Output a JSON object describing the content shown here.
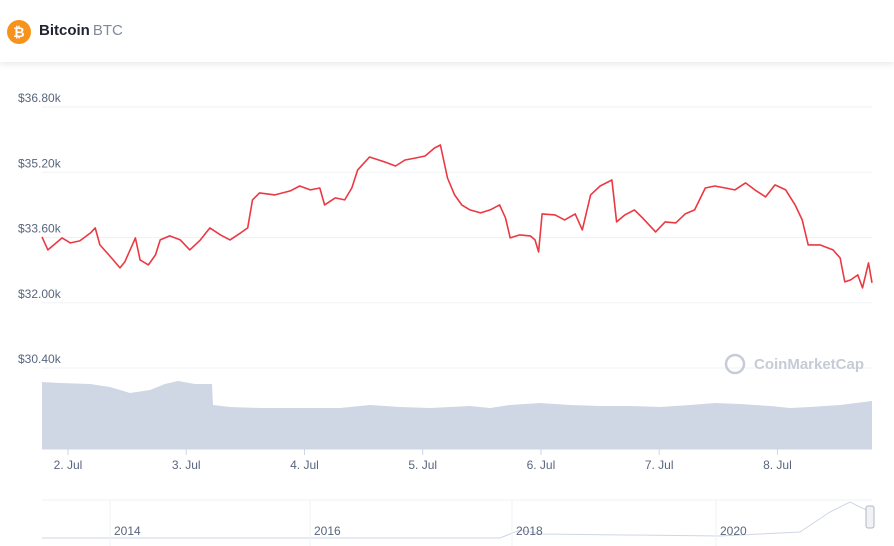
{
  "header": {
    "name": "Bitcoin",
    "symbol": "BTC"
  },
  "chart_data": {
    "type": "line",
    "color": "#ea3943",
    "grid": true,
    "x": [
      1.78,
      1.83,
      1.89,
      1.95,
      2.02,
      2.1,
      2.19,
      2.23,
      2.27,
      2.36,
      2.44,
      2.48,
      2.57,
      2.61,
      2.68,
      2.74,
      2.78,
      2.86,
      2.95,
      3.03,
      3.12,
      3.2,
      3.29,
      3.37,
      3.46,
      3.52,
      3.56,
      3.62,
      3.75,
      3.88,
      3.96,
      4.05,
      4.13,
      4.17,
      4.26,
      4.34,
      4.4,
      4.45,
      4.55,
      4.68,
      4.77,
      4.85,
      4.94,
      5.02,
      5.1,
      5.15,
      5.21,
      5.27,
      5.33,
      5.4,
      5.49,
      5.57,
      5.65,
      5.7,
      5.74,
      5.82,
      5.91,
      5.95,
      5.98,
      6.01,
      6.12,
      6.2,
      6.29,
      6.35,
      6.42,
      6.5,
      6.6,
      6.64,
      6.71,
      6.79,
      6.86,
      6.97,
      7.05,
      7.14,
      7.22,
      7.3,
      7.39,
      7.47,
      7.56,
      7.64,
      7.73,
      7.81,
      7.9,
      7.98,
      8.07,
      8.15,
      8.21,
      8.26,
      8.36,
      8.47,
      8.53,
      8.57,
      8.62,
      8.68,
      8.72,
      8.77,
      8.8
    ],
    "values": [
      33615,
      33296,
      33443,
      33590,
      33468,
      33517,
      33713,
      33835,
      33419,
      33125,
      32855,
      33002,
      33590,
      33051,
      32929,
      33174,
      33541,
      33639,
      33541,
      33296,
      33541,
      33835,
      33664,
      33541,
      33713,
      33835,
      34521,
      34693,
      34644,
      34742,
      34864,
      34766,
      34815,
      34399,
      34570,
      34521,
      34815,
      35257,
      35575,
      35452,
      35354,
      35501,
      35550,
      35599,
      35795,
      35869,
      35060,
      34644,
      34399,
      34276,
      34203,
      34276,
      34399,
      34080,
      33590,
      33664,
      33639,
      33541,
      33247,
      34178,
      34154,
      34031,
      34178,
      33786,
      34644,
      34864,
      35011,
      33982,
      34154,
      34276,
      34080,
      33737,
      33982,
      33958,
      34178,
      34276,
      34815,
      34864,
      34815,
      34766,
      34938,
      34766,
      34595,
      34889,
      34766,
      34399,
      34031,
      33419,
      33419,
      33296,
      33100,
      32512,
      32561,
      32684,
      32365,
      32978,
      32488
    ],
    "xlim": [
      1.78,
      8.8
    ],
    "xticks": [
      {
        "value": 2,
        "label": "2. Jul"
      },
      {
        "value": 3,
        "label": "3. Jul"
      },
      {
        "value": 4,
        "label": "4. Jul"
      },
      {
        "value": 5,
        "label": "5. Jul"
      },
      {
        "value": 6,
        "label": "6. Jul"
      },
      {
        "value": 7,
        "label": "7. Jul"
      },
      {
        "value": 8,
        "label": "8. Jul"
      }
    ],
    "ylim": [
      30400,
      36800
    ],
    "yticks": [
      {
        "value": 36800,
        "label": "$36.80k"
      },
      {
        "value": 35200,
        "label": "$35.20k"
      },
      {
        "value": 33600,
        "label": "$33.60k"
      },
      {
        "value": 32000,
        "label": "$32.00k"
      },
      {
        "value": 30400,
        "label": "$30.40k"
      }
    ],
    "watermark": "CoinMarketCap",
    "navigator_labels": [
      "2014",
      "2016",
      "2018",
      "2020"
    ]
  }
}
